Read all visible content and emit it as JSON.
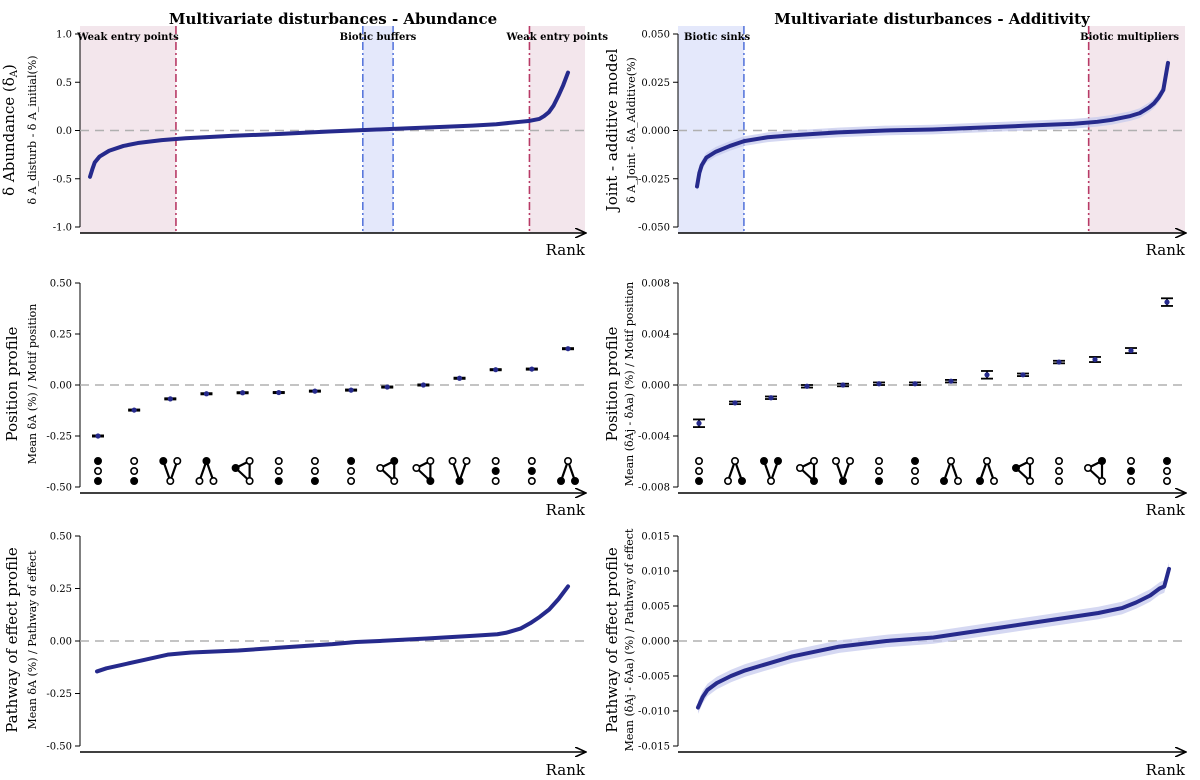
{
  "colors": {
    "line": "#262a8c",
    "ribbon": "#c7cbee",
    "zero_line": "#b0b0b0",
    "pink_fill": "#f3e6ec",
    "pink_line": "#b83a66",
    "blue_fill": "#e4e8fb",
    "blue_line": "#5a78dc"
  },
  "chart_data": [
    {
      "type": "line",
      "id": "abundance-rank",
      "title": "Multivariate disturbances - Abundance",
      "ylabel_main": "δ Abundance (δ",
      "ylabel_main_sub": "A",
      "ylabel_main_end": ")",
      "ylabel_sub": "δ A_disturb - δ A_initial(%)",
      "xlabel": "Rank",
      "ylim": [
        -1.0,
        1.0
      ],
      "yticks": [
        -1.0,
        -0.5,
        0.0,
        0.5,
        1.0
      ],
      "ytick_labels": [
        "-1.0",
        "-0.5",
        "0.0",
        "0.5",
        "1.0"
      ],
      "x": [
        0,
        0.005,
        0.01,
        0.02,
        0.04,
        0.07,
        0.1,
        0.15,
        0.2,
        0.3,
        0.4,
        0.5,
        0.6,
        0.7,
        0.8,
        0.85,
        0.88,
        0.9,
        0.92,
        0.94,
        0.95,
        0.96,
        0.97,
        0.98,
        0.99,
        1.0
      ],
      "y": [
        -0.48,
        -0.4,
        -0.33,
        -0.27,
        -0.21,
        -0.16,
        -0.13,
        -0.1,
        -0.08,
        -0.055,
        -0.035,
        -0.01,
        0.01,
        0.03,
        0.05,
        0.065,
        0.08,
        0.09,
        0.1,
        0.12,
        0.15,
        0.19,
        0.26,
        0.36,
        0.47,
        0.6
      ],
      "regions": [
        {
          "from": 0.0,
          "to": 0.19,
          "style": "pink",
          "label": "Weak entry points",
          "label_pos": "center",
          "lines": [
            "right"
          ]
        },
        {
          "from": 0.56,
          "to": 0.62,
          "style": "blue",
          "label": "Biotic buffers",
          "label_pos": "center",
          "lines": [
            "left",
            "right"
          ]
        },
        {
          "from": 0.89,
          "to": 1.0,
          "style": "pink",
          "label": "Weak entry points",
          "label_pos": "center",
          "lines": [
            "left"
          ]
        }
      ]
    },
    {
      "type": "line",
      "id": "additivity-rank",
      "title": "Multivariate disturbances - Additivity",
      "ylabel_main": "Joint - additive model",
      "ylabel_sub": "δ A_Joint - δA_Additive(%)",
      "xlabel": "Rank",
      "ylim": [
        -0.05,
        0.05
      ],
      "yticks": [
        -0.05,
        -0.025,
        0.0,
        0.025,
        0.05
      ],
      "ytick_labels": [
        "-0.050",
        "-0.025",
        "0.000",
        "0.025",
        "0.050"
      ],
      "x": [
        0,
        0.005,
        0.01,
        0.02,
        0.04,
        0.07,
        0.1,
        0.15,
        0.2,
        0.3,
        0.4,
        0.5,
        0.6,
        0.7,
        0.8,
        0.85,
        0.88,
        0.9,
        0.92,
        0.94,
        0.95,
        0.96,
        0.97,
        0.98,
        0.99,
        1.0
      ],
      "y": [
        -0.029,
        -0.022,
        -0.018,
        -0.014,
        -0.011,
        -0.008,
        -0.0055,
        -0.0035,
        -0.0025,
        -0.001,
        0.0,
        0.0005,
        0.0015,
        0.0025,
        0.0035,
        0.0045,
        0.0055,
        0.0065,
        0.0075,
        0.009,
        0.0105,
        0.012,
        0.014,
        0.017,
        0.021,
        0.035
      ],
      "ribbon": 0.0025,
      "regions": [
        {
          "from": 0.0,
          "to": 0.13,
          "style": "blue",
          "label": "Biotic sinks",
          "label_pos": "left",
          "lines": [
            "right"
          ]
        },
        {
          "from": 0.81,
          "to": 1.0,
          "style": "pink",
          "label": "Biotic multipliers",
          "label_pos": "right",
          "lines": [
            "left"
          ]
        }
      ]
    },
    {
      "type": "scatter",
      "id": "abundance-motif",
      "ylabel_main": "Position profile",
      "ylabel_sub": "Mean δA (%) / Motif position",
      "xlabel": "Rank",
      "ylim": [
        -0.5,
        0.5
      ],
      "yticks": [
        -0.5,
        -0.25,
        0.0,
        0.25,
        0.5
      ],
      "ytick_labels": [
        "-0.50",
        "-0.25",
        "0.00",
        "0.25",
        "0.50"
      ],
      "values": [
        -0.25,
        -0.123,
        -0.068,
        -0.043,
        -0.038,
        -0.037,
        -0.03,
        -0.025,
        -0.01,
        0.0,
        0.033,
        0.075,
        0.078,
        0.178
      ],
      "errors": [
        0.003,
        0.003,
        0.003,
        0.003,
        0.003,
        0.003,
        0.003,
        0.003,
        0.003,
        0.003,
        0.003,
        0.003,
        0.003,
        0.003
      ],
      "motifs": [
        [
          "chain",
          "F",
          "O",
          "F"
        ],
        [
          "chain",
          "O",
          "O",
          "F"
        ],
        [
          "vee",
          "F",
          "O",
          "O"
        ],
        [
          "lambda",
          "F",
          "O",
          "O"
        ],
        [
          "tri",
          "O",
          "F",
          "O"
        ],
        [
          "chain",
          "O",
          "O",
          "F"
        ],
        [
          "chain",
          "O",
          "O",
          "F"
        ],
        [
          "chain",
          "F",
          "O",
          "O"
        ],
        [
          "tri",
          "F",
          "O",
          "O"
        ],
        [
          "tri",
          "O",
          "O",
          "F"
        ],
        [
          "vee",
          "O",
          "O",
          "F"
        ],
        [
          "chain",
          "O",
          "F",
          "O"
        ],
        [
          "chain",
          "O",
          "F",
          "O"
        ],
        [
          "lambda",
          "O",
          "F",
          "F"
        ]
      ]
    },
    {
      "type": "scatter",
      "id": "additivity-motif",
      "ylabel_main": "Position profile",
      "ylabel_sub": "Mean (δAj - δAa) (%) / Motif position",
      "xlabel": "Rank",
      "ylim": [
        -0.008,
        0.008
      ],
      "yticks": [
        -0.008,
        -0.004,
        0.0,
        0.004,
        0.008
      ],
      "ytick_labels": [
        "-0.008",
        "-0.004",
        "0.000",
        "0.004",
        "0.008"
      ],
      "values": [
        -0.003,
        -0.0014,
        -0.001,
        -0.0001,
        0.0,
        0.0001,
        0.0001,
        0.0003,
        0.0008,
        0.0008,
        0.0018,
        0.002,
        0.0027,
        0.0065
      ],
      "errors": [
        0.0003,
        0.0001,
        0.0001,
        0.0001,
        0.0001,
        0.0001,
        0.0001,
        0.0001,
        0.0003,
        0.0001,
        0.0001,
        0.0002,
        0.0002,
        0.0003
      ],
      "motifs": [
        [
          "chain",
          "O",
          "O",
          "F"
        ],
        [
          "lambda",
          "O",
          "O",
          "F"
        ],
        [
          "vee",
          "F",
          "F",
          "O"
        ],
        [
          "tri",
          "O",
          "O",
          "F"
        ],
        [
          "vee",
          "O",
          "O",
          "F"
        ],
        [
          "chain",
          "O",
          "O",
          "F"
        ],
        [
          "chain",
          "F",
          "O",
          "O"
        ],
        [
          "lambda",
          "O",
          "F",
          "O"
        ],
        [
          "lambda",
          "O",
          "F",
          "O"
        ],
        [
          "tri",
          "O",
          "F",
          "O"
        ],
        [
          "chain",
          "O",
          "O",
          "O"
        ],
        [
          "tri",
          "F",
          "O",
          "O"
        ],
        [
          "chain",
          "O",
          "F",
          "O"
        ],
        [
          "chain",
          "F",
          "O",
          "O"
        ]
      ]
    },
    {
      "type": "line",
      "id": "abundance-pathway",
      "ylabel_main": "Pathway of effect profile",
      "ylabel_sub": "Mean δA (%) / Pathway of effect",
      "xlabel": "Rank",
      "ylim": [
        -0.5,
        0.5
      ],
      "yticks": [
        -0.5,
        -0.25,
        0.0,
        0.25,
        0.5
      ],
      "ytick_labels": [
        "-0.50",
        "-0.25",
        "0.00",
        "0.25",
        "0.50"
      ],
      "x": [
        0,
        0.02,
        0.05,
        0.1,
        0.15,
        0.2,
        0.3,
        0.4,
        0.5,
        0.55,
        0.6,
        0.7,
        0.8,
        0.85,
        0.87,
        0.9,
        0.92,
        0.94,
        0.96,
        0.98,
        1.0
      ],
      "y": [
        -0.145,
        -0.13,
        -0.115,
        -0.09,
        -0.065,
        -0.055,
        -0.045,
        -0.03,
        -0.015,
        -0.005,
        0.0,
        0.012,
        0.025,
        0.032,
        0.04,
        0.06,
        0.085,
        0.115,
        0.15,
        0.2,
        0.26
      ]
    },
    {
      "type": "line",
      "id": "additivity-pathway",
      "ylabel_main": "Pathway of effect profile",
      "ylabel_sub": "Mean (δAj - δAa) (%) / Pathway of effect",
      "xlabel": "Rank",
      "ylim": [
        -0.015,
        0.015
      ],
      "yticks": [
        -0.015,
        -0.01,
        -0.005,
        0.0,
        0.005,
        0.01,
        0.015
      ],
      "ytick_labels": [
        "-0.015",
        "-0.010",
        "-0.005",
        "0.000",
        "0.005",
        "0.010",
        "0.015"
      ],
      "x": [
        0,
        0.01,
        0.02,
        0.04,
        0.07,
        0.1,
        0.15,
        0.2,
        0.3,
        0.4,
        0.5,
        0.6,
        0.7,
        0.8,
        0.85,
        0.9,
        0.93,
        0.96,
        0.98,
        0.99,
        1.0
      ],
      "y": [
        -0.0095,
        -0.008,
        -0.007,
        -0.006,
        -0.005,
        -0.0042,
        -0.0032,
        -0.0022,
        -0.0008,
        0.0,
        0.0005,
        0.0015,
        0.0025,
        0.0035,
        0.004,
        0.0047,
        0.0055,
        0.0065,
        0.0075,
        0.0078,
        0.0103
      ],
      "ribbon": 0.0009
    }
  ]
}
